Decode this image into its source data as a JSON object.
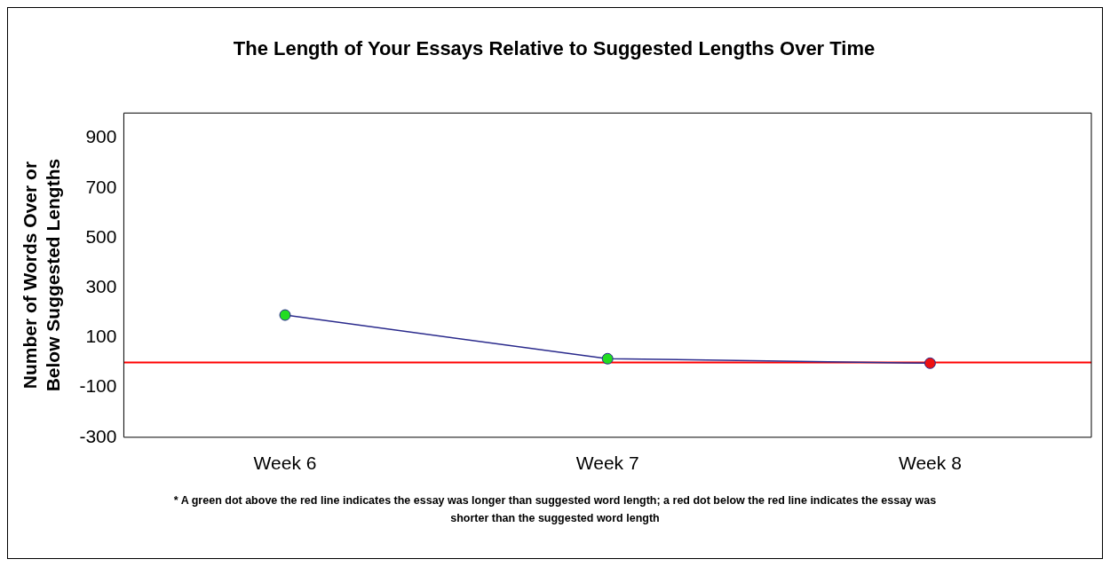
{
  "chart_data": {
    "type": "line",
    "title": "The Length of Your Essays Relative to Suggested Lengths Over Time",
    "ylabel": "Number of Words Over or Below Suggested Lengths",
    "categories": [
      "Week 6",
      "Week 7",
      "Week 8"
    ],
    "series": [
      {
        "color": "#2a2a8c",
        "colors": [
          "#22dd22",
          "#22dd22",
          "#ee1111"
        ],
        "values": [
          190,
          15,
          -3
        ]
      }
    ],
    "ylim": [
      -300,
      1000
    ],
    "yticks": [
      -300,
      -100,
      100,
      300,
      500,
      700,
      900
    ],
    "grid": false,
    "legend": false,
    "marker": "circle",
    "line_style": "solid",
    "ref_lines": [
      {
        "axis": "y",
        "value": 0,
        "color": "#ff0000"
      }
    ],
    "annotations": [
      "* A green dot above the red line indicates the essay was longer than suggested word length; a red dot below the red line indicates the essay was shorter than the suggested word length"
    ]
  }
}
